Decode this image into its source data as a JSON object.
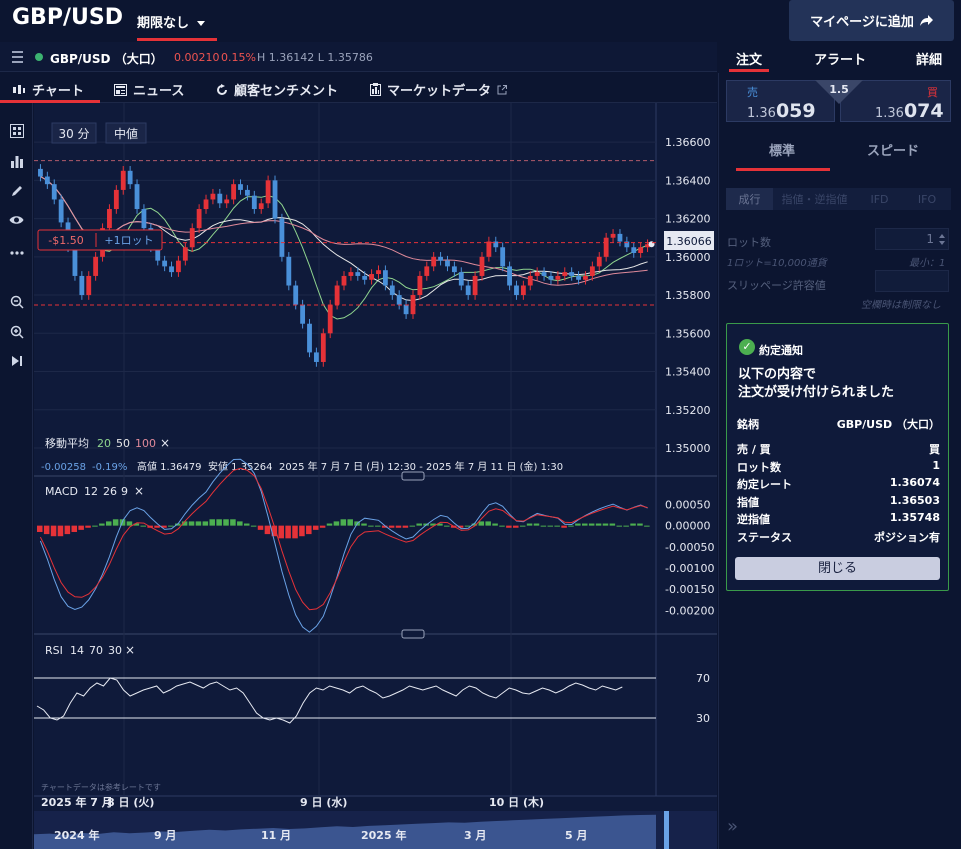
{
  "header": {
    "pair": "GBP/USD",
    "expiry": "期限なし",
    "mypage_button": "マイページに追加"
  },
  "quote_bar": {
    "symbol": "GBP/USD （大口）",
    "change": "0.00210",
    "change_pct": "0.15%",
    "high_low": "H 1.36142  L 1.35786"
  },
  "panel_tabs": [
    "注文",
    "アラート",
    "詳細"
  ],
  "chart_tabs": [
    "チャート",
    "ニュース",
    "顧客センチメント",
    "マーケットデータ"
  ],
  "chart": {
    "interval": "30 分",
    "price_type": "中値",
    "pnl": "-$1.50",
    "lot": "+1ロット",
    "current_price": "1.36066",
    "price_ticks": [
      "1.36600",
      "1.36400",
      "1.36200",
      "1.36000",
      "1.35800",
      "1.35600",
      "1.35400",
      "1.35200",
      "1.35000"
    ],
    "ma_label": "移動平均",
    "ma_params": [
      "20",
      "50",
      "100"
    ],
    "info_change": "-0.00258",
    "info_pct": "-0.19%",
    "info_high": "高値 1.36479",
    "info_low": "安値 1.35264",
    "info_range": "2025 年 7 月 7 日 (月) 12:30 - 2025 年 7 月 11 日 (金) 1:30",
    "macd_label": "MACD",
    "macd_params": [
      "12",
      "26",
      "9"
    ],
    "macd_ticks": [
      "0.00050",
      "0.00000",
      "-0.00050",
      "-0.00100",
      "-0.00150",
      "-0.00200"
    ],
    "rsi_label": "RSI",
    "rsi_params": [
      "14",
      "70",
      "30"
    ],
    "rsi_ticks": [
      "70",
      "30"
    ],
    "disclaimer": "チャートデータは参考レートです",
    "x_labels": [
      "2025 年 7 月",
      "8 日 (火)",
      "9 日 (水)",
      "10 日 (木)"
    ],
    "nav_labels": [
      "2024 年",
      "9 月",
      "11 月",
      "2025 年",
      "3 月",
      "5 月"
    ],
    "close_series": [
      1.3642,
      1.3638,
      1.363,
      1.3618,
      1.3605,
      1.359,
      1.358,
      1.359,
      1.36,
      1.3615,
      1.3625,
      1.3635,
      1.3645,
      1.3638,
      1.3625,
      1.3615,
      1.3605,
      1.3598,
      1.3595,
      1.3592,
      1.3598,
      1.3605,
      1.3615,
      1.3625,
      1.363,
      1.3633,
      1.3628,
      1.363,
      1.3638,
      1.3635,
      1.3632,
      1.3625,
      1.3628,
      1.364,
      1.362,
      1.36,
      1.3585,
      1.3575,
      1.3565,
      1.355,
      1.3545,
      1.356,
      1.3575,
      1.3585,
      1.359,
      1.3592,
      1.359,
      1.3588,
      1.3591,
      1.3593,
      1.3585,
      1.358,
      1.3575,
      1.357,
      1.358,
      1.359,
      1.3595,
      1.36,
      1.3598,
      1.3595,
      1.3592,
      1.3585,
      1.358,
      1.359,
      1.36,
      1.3608,
      1.3605,
      1.3595,
      1.3585,
      1.358,
      1.3585,
      1.359,
      1.3592,
      1.359,
      1.3588,
      1.359,
      1.3592,
      1.359,
      1.3588,
      1.359,
      1.3595,
      1.36,
      1.361,
      1.3612,
      1.3608,
      1.3605,
      1.3602,
      1.3605,
      1.36066
    ],
    "rsi_series": [
      42,
      38,
      30,
      28,
      32,
      45,
      55,
      52,
      60,
      65,
      62,
      70,
      68,
      58,
      52,
      55,
      58,
      60,
      62,
      55,
      58,
      62,
      64,
      66,
      63,
      60,
      64,
      66,
      62,
      58,
      60,
      55,
      45,
      35,
      30,
      28,
      30,
      28,
      25,
      32,
      45,
      55,
      60,
      58,
      62,
      60,
      58,
      55,
      60,
      62,
      58,
      55,
      50,
      52,
      55,
      58,
      62,
      60,
      58,
      60,
      62,
      58,
      55,
      52,
      58,
      62,
      60,
      55,
      52,
      50,
      55,
      60,
      58,
      55,
      54,
      57,
      60,
      58,
      55,
      58,
      62,
      65,
      63,
      60,
      58,
      62,
      60,
      58,
      61
    ],
    "macd_hist": [
      -3,
      -4,
      -5,
      -5,
      -4,
      -3,
      -2,
      -1,
      0,
      1,
      2,
      3,
      3,
      2,
      1,
      0,
      -1,
      -1,
      -1,
      0,
      1,
      2,
      2,
      2,
      2,
      3,
      3,
      3,
      3,
      2,
      1,
      0,
      -2,
      -4,
      -5,
      -6,
      -6,
      -6,
      -5,
      -4,
      -2,
      -1,
      1,
      2,
      3,
      3,
      2,
      1,
      0,
      0,
      -1,
      -1,
      -1,
      -1,
      0,
      1,
      1,
      1,
      1,
      0,
      -1,
      -1,
      0,
      1,
      2,
      2,
      1,
      0,
      -1,
      -1,
      0,
      1,
      1,
      0,
      0,
      0,
      -1,
      0,
      1,
      1,
      1,
      1,
      1,
      1,
      0,
      0,
      1,
      1,
      0
    ],
    "nav_series": [
      42,
      44,
      40,
      46,
      43,
      48,
      45,
      47,
      50,
      49,
      52,
      55,
      53,
      56,
      58,
      60,
      57,
      59,
      62,
      65,
      63,
      66,
      68,
      70,
      72,
      74,
      76,
      75,
      78,
      80,
      82,
      84,
      86,
      88,
      90,
      92,
      94,
      96,
      97,
      98
    ]
  },
  "order": {
    "sell_label": "売",
    "sell_small": "1.36",
    "sell_big": "059",
    "spread": "1.5",
    "buy_label": "買",
    "buy_small": "1.36",
    "buy_big": "074",
    "mode_tabs": [
      "標準",
      "スピード"
    ],
    "order_types": [
      "成行",
      "指値・逆指値",
      "IFD",
      "IFO"
    ],
    "lot_label": "ロット数",
    "lot_value": "1",
    "lot_note": "1ロット=10,000通貨",
    "lot_min": "最小：1",
    "slippage_label": "スリッページ許容値",
    "slippage_note": "空欄時は制限なし"
  },
  "confirmation": {
    "title": "約定通知",
    "message_line1": "以下の内容で",
    "message_line2": "注文が受け付けられました",
    "rows": [
      {
        "k": "銘柄",
        "v": "GBP/USD （大口）"
      },
      {
        "k": "売 / 買",
        "v": "買"
      },
      {
        "k": "ロット数",
        "v": "1"
      },
      {
        "k": "約定レート",
        "v": "1.36074"
      },
      {
        "k": "指値",
        "v": "1.36503"
      },
      {
        "k": "逆指値",
        "v": "1.35748"
      },
      {
        "k": "ステータス",
        "v": "ポジション有"
      }
    ],
    "close_button": "閉じる"
  },
  "colors": {
    "accent_red": "#e53238",
    "bull": "#e53238",
    "bear": "#4a90d9",
    "ma20": "#8fd48f",
    "ma50": "#e8e8e8",
    "ma100": "#e08a9a",
    "confirm_border": "#3a9a4a"
  }
}
